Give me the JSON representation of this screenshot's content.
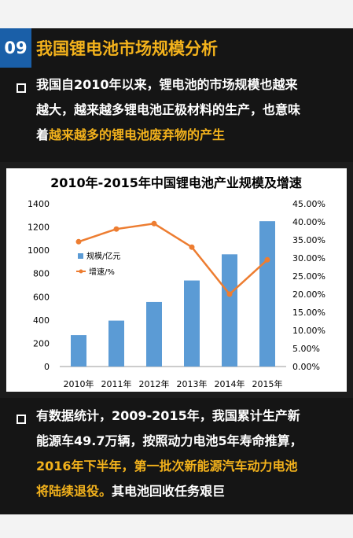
{
  "header": {
    "number": "09",
    "title": "我国锂电池市场规模分析"
  },
  "intro": {
    "lines": [
      "我国自2010年以来，锂电池的市场规模也越来",
      "越大，越来越多锂电池正极材料的生产，也意味"
    ],
    "line3_prefix": "着",
    "line3_highlight": "越来越多的锂电池废弃物的产生"
  },
  "chart_data": {
    "type": "bar",
    "title": "2010年-2015年中国锂电池产业规模及增速",
    "categories": [
      "2010年",
      "2011年",
      "2012年",
      "2013年",
      "2014年",
      "2015年"
    ],
    "series": [
      {
        "name": "规模/亿元",
        "type": "bar",
        "axis": "left",
        "values": [
          270,
          395,
          555,
          740,
          965,
          1250
        ]
      },
      {
        "name": "增速/%",
        "type": "line",
        "axis": "right",
        "values": [
          34.5,
          38.0,
          39.5,
          33.0,
          20.0,
          29.5
        ]
      }
    ],
    "y_left": {
      "min": 0,
      "max": 1400,
      "ticks": [
        "0",
        "200",
        "400",
        "600",
        "800",
        "1000",
        "1200",
        "1400"
      ]
    },
    "y_right": {
      "min": 0,
      "max": 45,
      "ticks": [
        "0.00%",
        "5.00%",
        "10.00%",
        "15.00%",
        "20.00%",
        "25.00%",
        "30.00%",
        "35.00%",
        "40.00%",
        "45.00%"
      ]
    },
    "legend_position": "left",
    "colors": {
      "bar": "#5b9bd5",
      "line": "#ed7d31"
    }
  },
  "outro": {
    "lines": [
      "有数据统计，2009-2015年，我国累计生产新",
      "能源车49.7万辆，按照动力电池5年寿命推算，"
    ],
    "highlight_lines": [
      "2016年下半年，第一批次新能源汽车动力电池",
      "将陆续退役。"
    ],
    "tail": "其电池回收任务艰巨"
  }
}
